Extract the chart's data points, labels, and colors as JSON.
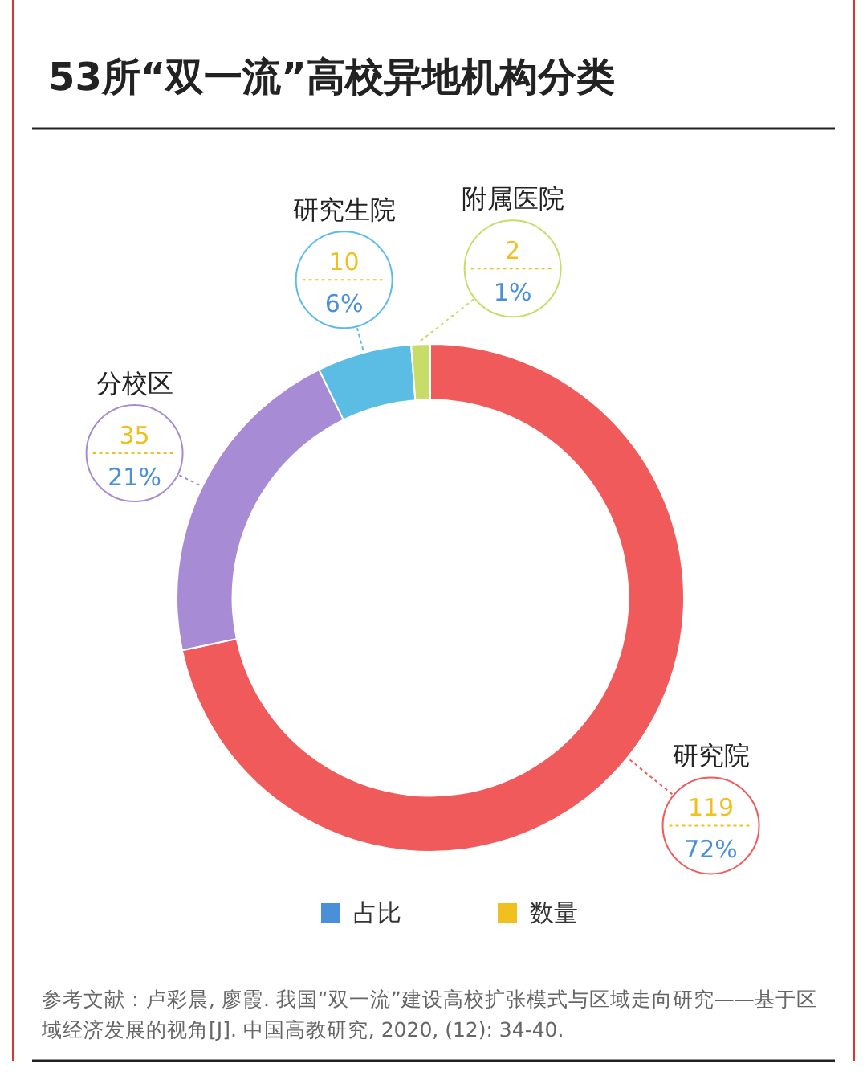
{
  "chart_data": {
    "type": "donut",
    "title": "53所“双一流”高校异地机构分类",
    "categories": [
      "研究院",
      "分校区",
      "研究生院",
      "附属医院"
    ],
    "colors": [
      "#f05a5a",
      "#a78bd4",
      "#5bbde4",
      "#c8dc6a"
    ],
    "series": [
      {
        "name": "数量",
        "color": "#f0c020",
        "values": [
          119,
          35,
          10,
          2
        ]
      }
    ],
    "data_labels": true,
    "legend": "bottom",
    "annotations": [
      {
        "text": "72%",
        "x": "研究院"
      },
      {
        "text": "21%",
        "x": "分校区"
      },
      {
        "text": "6%",
        "x": "研究生院"
      },
      {
        "text": "1%",
        "x": "附属医院"
      },
      "占比",
      "参考文献：卢彩晨, 廖霞. 我国“双一流”建设高校扩张模式与区域走向研究——基于区域经济发展的视角[J]. 中国高教研究, 2020, (12): 34-40."
    ]
  }
}
